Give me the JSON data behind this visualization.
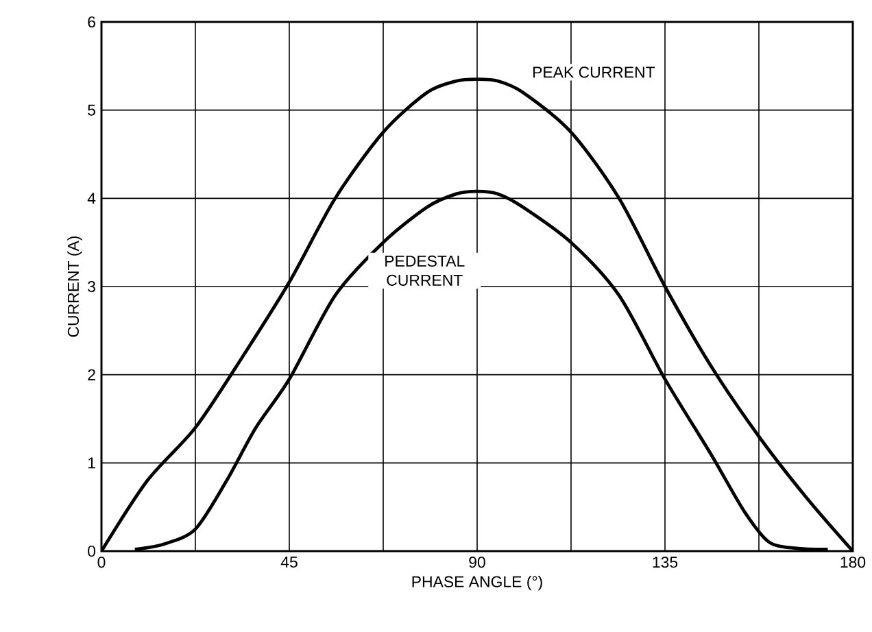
{
  "chart_data": {
    "type": "line",
    "xlabel": "PHASE ANGLE (°)",
    "ylabel": "CURRENT (A)",
    "xlim": [
      0,
      180
    ],
    "ylim": [
      0,
      6
    ],
    "xticks": [
      0,
      {
        "value": 22.5,
        "label": null
      },
      45,
      {
        "value": 67.5,
        "label": null
      },
      90,
      {
        "value": 112.5,
        "label": null
      },
      135,
      {
        "value": 157.5,
        "label": null
      },
      180
    ],
    "yticks": [
      0,
      1,
      2,
      3,
      4,
      5,
      6
    ],
    "grid": true,
    "marker": "none",
    "line_style": "solid",
    "series": [
      {
        "name": "PEAK CURRENT",
        "color": "#000000",
        "x": [
          0,
          11,
          22.5,
          33.75,
          45,
          56,
          67.5,
          78,
          85,
          90,
          95,
          101,
          112.5,
          124,
          135,
          146,
          157.5,
          169,
          180
        ],
        "values": [
          0,
          0.8,
          1.4,
          2.2,
          3.05,
          4.0,
          4.75,
          5.2,
          5.33,
          5.35,
          5.33,
          5.2,
          4.75,
          4.0,
          3.0,
          2.1,
          1.3,
          0.6,
          0
        ]
      },
      {
        "name": "PEDESTAL CURRENT",
        "color": "#000000",
        "x": [
          8,
          15,
          22.5,
          30,
          37,
          45,
          56,
          67.5,
          78,
          85,
          90,
          95,
          101,
          112.5,
          124,
          135,
          146,
          154,
          160,
          167,
          174
        ],
        "values": [
          0.02,
          0.08,
          0.25,
          0.8,
          1.4,
          1.95,
          2.9,
          3.5,
          3.9,
          4.05,
          4.08,
          4.05,
          3.9,
          3.5,
          2.9,
          1.95,
          1.1,
          0.45,
          0.1,
          0.03,
          0.02
        ]
      }
    ]
  }
}
